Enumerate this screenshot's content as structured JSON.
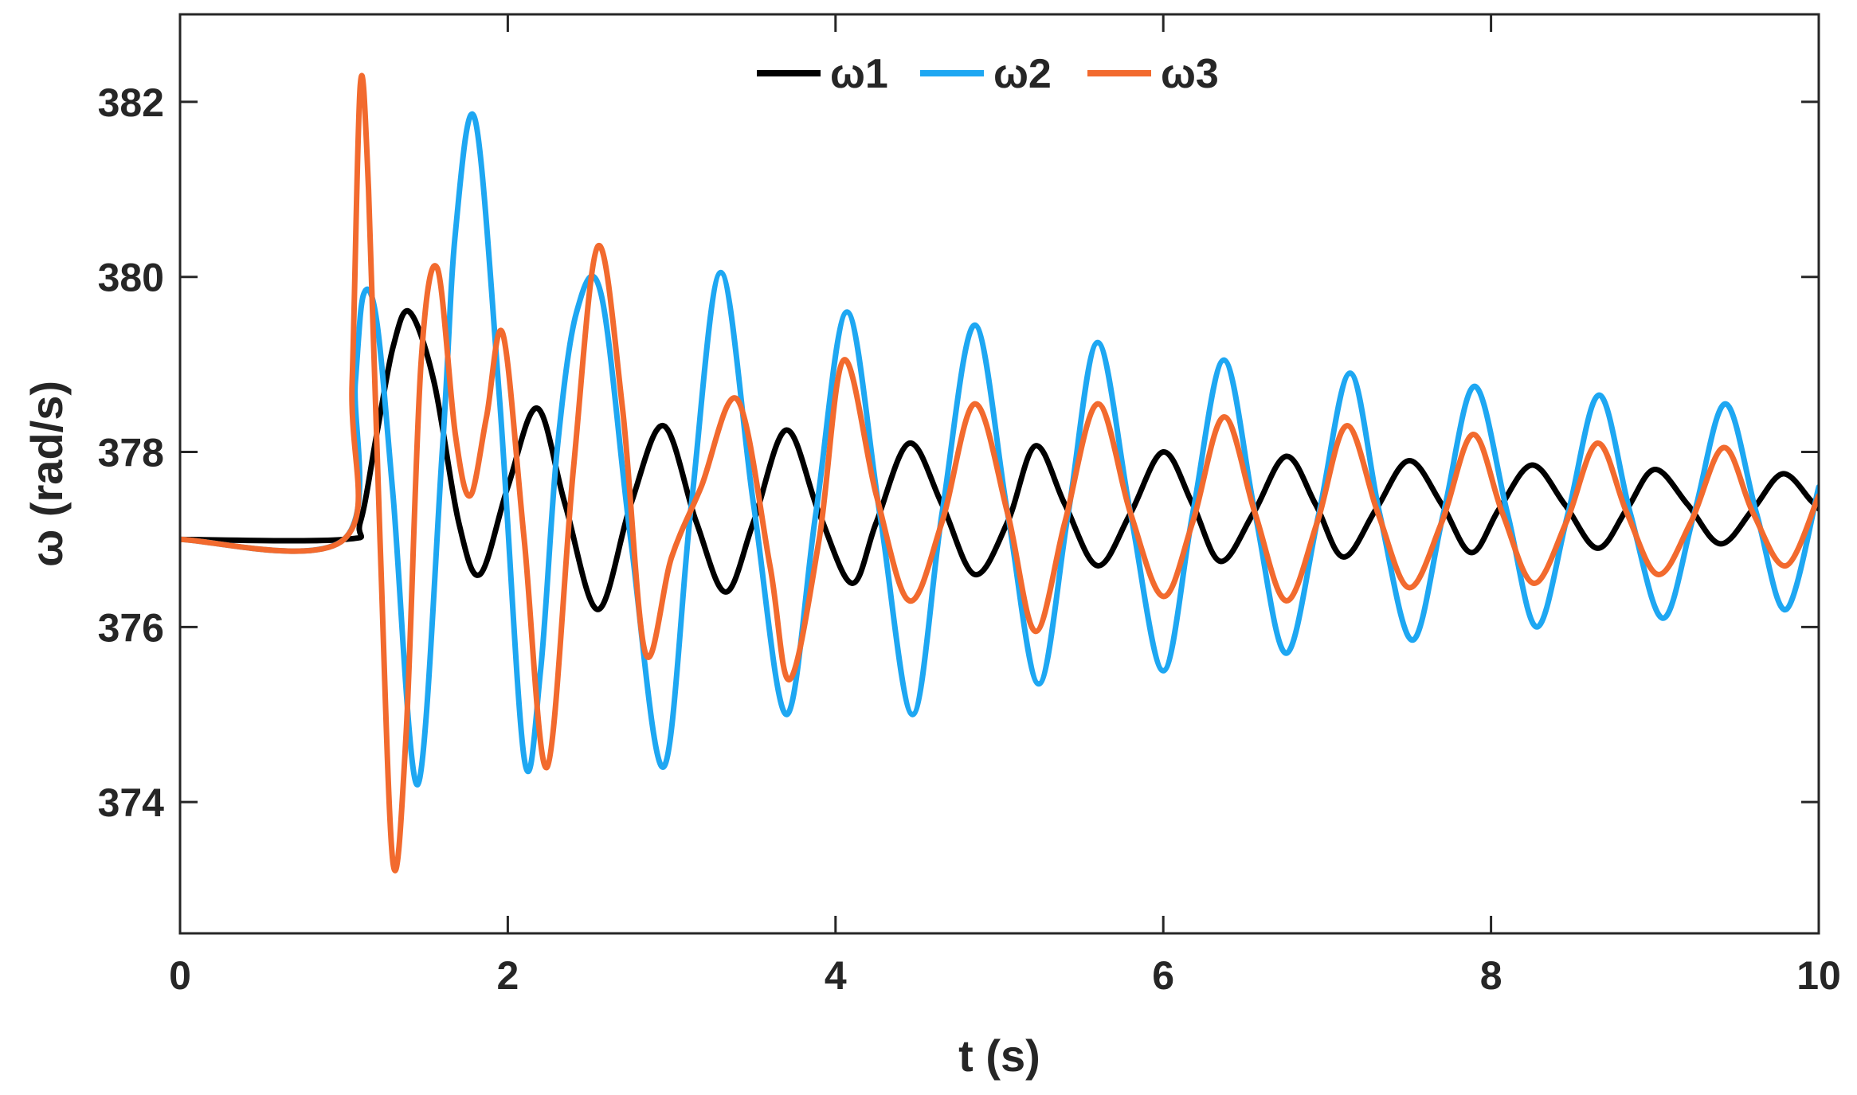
{
  "chart_data": {
    "type": "line",
    "title": "",
    "xlabel": "t (s)",
    "ylabel": "ω (rad/s)",
    "xlim": [
      0,
      10
    ],
    "ylim": [
      372.5,
      383
    ],
    "xticks": [
      0,
      2,
      4,
      6,
      8,
      10
    ],
    "yticks": [
      374,
      376,
      378,
      380,
      382
    ],
    "grid": false,
    "legend_position": "top",
    "legend_orientation": "horizontal",
    "series": [
      {
        "name": "ω1",
        "color": "#000000",
        "x": [
          0,
          1.0,
          1.1,
          1.2,
          1.3,
          1.4,
          1.55,
          1.7,
          1.83,
          2.0,
          2.18,
          2.35,
          2.55,
          2.75,
          2.95,
          3.15,
          3.33,
          3.5,
          3.7,
          3.9,
          4.1,
          4.25,
          4.45,
          4.65,
          4.85,
          5.05,
          5.22,
          5.4,
          5.6,
          5.8,
          6.0,
          6.18,
          6.35,
          6.55,
          6.75,
          6.93,
          7.1,
          7.3,
          7.5,
          7.7,
          7.88,
          8.05,
          8.25,
          8.45,
          8.65,
          8.83,
          9.0,
          9.2,
          9.4,
          9.6,
          9.78,
          9.95,
          10.0
        ],
        "y": [
          377.0,
          377.0,
          377.2,
          378.2,
          379.2,
          379.6,
          378.8,
          377.2,
          376.6,
          377.6,
          378.5,
          377.4,
          376.2,
          377.4,
          378.3,
          377.2,
          376.4,
          377.2,
          378.25,
          377.3,
          376.5,
          377.2,
          378.1,
          377.4,
          376.6,
          377.2,
          378.07,
          377.4,
          376.7,
          377.3,
          378.0,
          377.4,
          376.75,
          377.3,
          377.95,
          377.4,
          376.8,
          377.35,
          377.9,
          377.4,
          376.85,
          377.35,
          377.85,
          377.4,
          376.9,
          377.35,
          377.8,
          377.4,
          376.95,
          377.35,
          377.75,
          377.45,
          377.35
        ]
      },
      {
        "name": "ω2",
        "color": "#1ea7f2",
        "x": [
          0,
          1.0,
          1.07,
          1.12,
          1.2,
          1.3,
          1.45,
          1.6,
          1.68,
          1.8,
          1.95,
          2.1,
          2.2,
          2.3,
          2.42,
          2.57,
          2.75,
          2.95,
          3.12,
          3.3,
          3.5,
          3.7,
          3.88,
          4.07,
          4.27,
          4.47,
          4.65,
          4.85,
          5.05,
          5.24,
          5.42,
          5.6,
          5.8,
          6.0,
          6.18,
          6.37,
          6.56,
          6.75,
          6.95,
          7.14,
          7.32,
          7.52,
          7.71,
          7.9,
          8.1,
          8.28,
          8.47,
          8.66,
          8.85,
          9.05,
          9.24,
          9.43,
          9.62,
          9.8,
          10.0
        ],
        "y": [
          377.0,
          377.0,
          378.8,
          379.8,
          379.5,
          377.5,
          374.2,
          378.0,
          380.5,
          381.8,
          378.6,
          374.5,
          375.5,
          378.0,
          379.6,
          379.8,
          377.0,
          374.4,
          377.4,
          380.05,
          377.4,
          375.0,
          377.3,
          379.6,
          377.3,
          375.0,
          377.3,
          379.45,
          377.3,
          375.35,
          377.3,
          379.25,
          377.3,
          375.5,
          377.3,
          379.05,
          377.3,
          375.7,
          377.3,
          378.9,
          377.3,
          375.85,
          377.3,
          378.75,
          377.3,
          376.0,
          377.3,
          378.65,
          377.3,
          376.1,
          377.3,
          378.55,
          377.3,
          376.2,
          377.6
        ]
      },
      {
        "name": "ω3",
        "color": "#f26a2e",
        "x": [
          0,
          1.0,
          1.05,
          1.1,
          1.15,
          1.22,
          1.3,
          1.38,
          1.47,
          1.57,
          1.68,
          1.77,
          1.87,
          1.97,
          2.1,
          2.24,
          2.4,
          2.55,
          2.7,
          2.84,
          3.0,
          3.18,
          3.4,
          3.6,
          3.72,
          3.9,
          4.05,
          4.25,
          4.45,
          4.65,
          4.85,
          5.05,
          5.22,
          5.4,
          5.6,
          5.8,
          6.0,
          6.18,
          6.37,
          6.56,
          6.75,
          6.94,
          7.12,
          7.31,
          7.5,
          7.7,
          7.89,
          8.07,
          8.26,
          8.46,
          8.65,
          8.83,
          9.02,
          9.22,
          9.42,
          9.6,
          9.8,
          10.0
        ],
        "y": [
          377.0,
          377.0,
          378.8,
          382.2,
          381.0,
          377.0,
          373.3,
          374.8,
          379.0,
          380.1,
          378.2,
          377.5,
          378.4,
          379.35,
          377.0,
          374.4,
          377.8,
          380.35,
          378.5,
          375.7,
          376.8,
          377.6,
          378.6,
          376.7,
          375.4,
          377.0,
          379.05,
          377.5,
          376.3,
          377.2,
          378.55,
          377.3,
          375.95,
          377.2,
          378.55,
          377.3,
          376.35,
          377.2,
          378.4,
          377.3,
          376.3,
          377.2,
          378.3,
          377.3,
          376.45,
          377.2,
          378.2,
          377.3,
          376.5,
          377.2,
          378.1,
          377.3,
          376.6,
          377.2,
          378.05,
          377.3,
          376.7,
          377.5
        ]
      }
    ]
  }
}
